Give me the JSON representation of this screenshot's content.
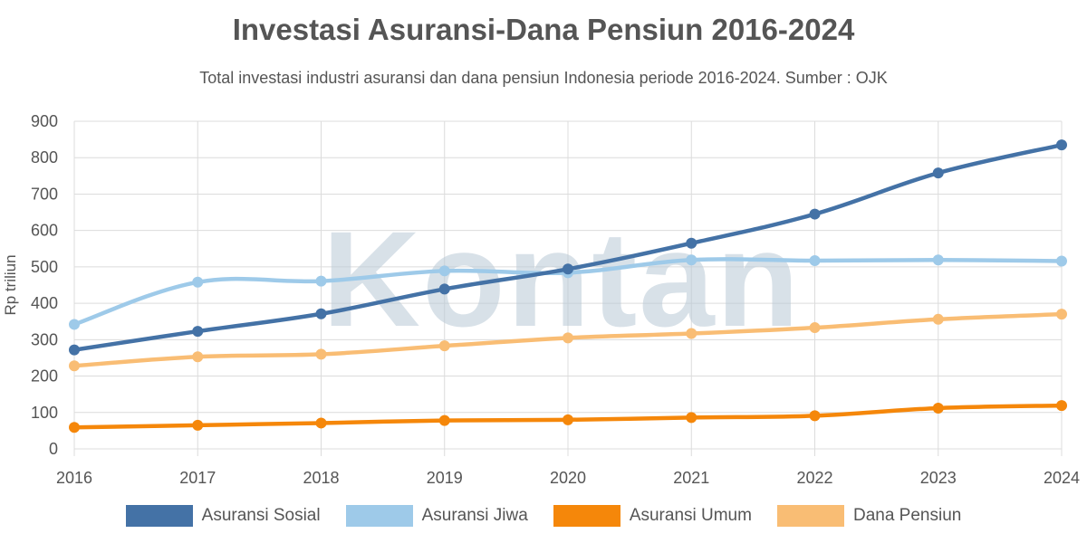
{
  "chart_data": {
    "type": "line",
    "title": "Investasi Asuransi-Dana Pensiun 2016-2024",
    "subtitle": "Total investasi industri asuransi dan dana pensiun Indonesia periode 2016-2024. Sumber : OJK",
    "xlabel": "",
    "ylabel": "Rp triliun",
    "x": [
      "2016",
      "2017",
      "2018",
      "2019",
      "2020",
      "2021",
      "2022",
      "2023",
      "2024"
    ],
    "ylim": [
      0,
      900
    ],
    "yticks": [
      0,
      100,
      200,
      300,
      400,
      500,
      600,
      700,
      800,
      900
    ],
    "grid": true,
    "legend_position": "bottom",
    "series": [
      {
        "name": "Asuransi Sosial",
        "color": "#4472a6",
        "values": [
          272,
          323,
          371,
          439,
          494,
          565,
          645,
          758,
          835
        ]
      },
      {
        "name": "Asuransi Jiwa",
        "color": "#9ecae9",
        "values": [
          342,
          458,
          461,
          489,
          484,
          519,
          517,
          519,
          516
        ]
      },
      {
        "name": "Asuransi Umum",
        "color": "#f5870a",
        "values": [
          59,
          65,
          71,
          78,
          80,
          86,
          91,
          112,
          119
        ]
      },
      {
        "name": "Dana Pensiun",
        "color": "#f9bd74",
        "values": [
          228,
          253,
          260,
          283,
          305,
          317,
          333,
          356,
          370
        ]
      }
    ]
  },
  "watermark": "Kontan"
}
